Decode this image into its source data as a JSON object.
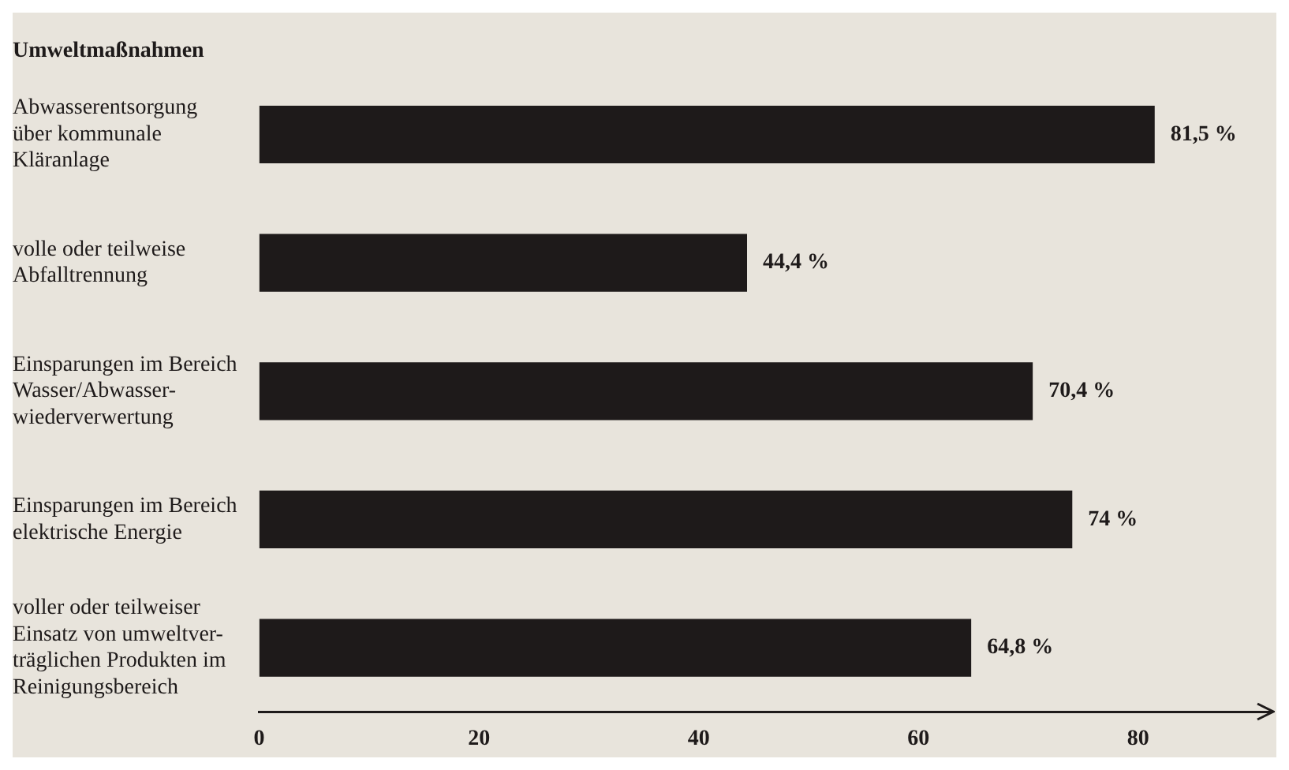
{
  "chart_data": {
    "type": "bar",
    "orientation": "horizontal",
    "title": "Umweltmaßnahmen",
    "categories": [
      "Abwasserentsorgung\nüber kommunale\nKläranlage",
      "volle oder teilweise\nAbfalltrennung",
      "Einsparungen im Bereich\nWasser/Abwasser-\nwiederverwertung",
      "Einsparungen im Bereich\nelektrische Energie",
      "voller oder teilweiser\nEinsatz von umweltver-\nträglichen Produkten im\nReinigungsbereich"
    ],
    "values": [
      81.5,
      44.4,
      70.4,
      74,
      64.8
    ],
    "value_labels": [
      "81,5 %",
      "44,4 %",
      "70,4 %",
      "74 %",
      "64,8 %"
    ],
    "color": "#1e1a1a",
    "xlim": [
      0,
      92
    ],
    "xticks": [
      0,
      20,
      40,
      60,
      80
    ],
    "grid": false,
    "legend": false
  }
}
